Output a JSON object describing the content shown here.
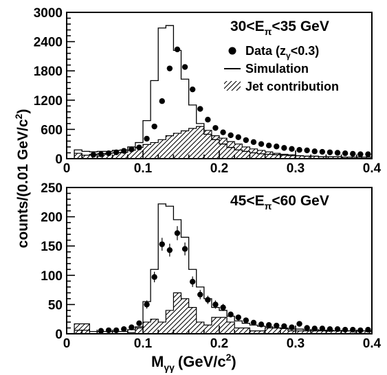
{
  "ylabel": "counts/(0.01 GeV/c",
  "ylabel_sup": "2",
  "ylabel_tail": ")",
  "xlabel": "M",
  "xlabel_sub": "γγ",
  "xlabel_unit": "(GeV/c",
  "xlabel_sup": "2",
  "xlabel_tail": ")",
  "legend": {
    "data": "Data (z",
    "data_sub": "γ",
    "data_tail": "<0.3)",
    "simulation": "Simulation",
    "jet": "Jet contribution"
  },
  "chart_data": [
    {
      "type": "line",
      "panel": "top",
      "annotation": {
        "pre": "30<E",
        "sub": "π",
        "post": "<35 GeV"
      },
      "xlim": [
        0,
        0.4
      ],
      "ylim": [
        0,
        3000
      ],
      "xticks": [
        0,
        0.1,
        0.2,
        0.3,
        0.4
      ],
      "xtick_labels": [
        "0",
        "0.1",
        "0.2",
        "0.3",
        "0.4"
      ],
      "yticks": [
        0,
        600,
        1200,
        1800,
        2400,
        3000
      ],
      "ytick_labels": [
        "0",
        "600",
        "1200",
        "1800",
        "2400",
        "3000"
      ],
      "bin_edges": [
        0.01,
        0.02,
        0.03,
        0.04,
        0.05,
        0.06,
        0.07,
        0.08,
        0.09,
        0.1,
        0.11,
        0.12,
        0.13,
        0.14,
        0.15,
        0.16,
        0.17,
        0.18,
        0.19,
        0.2,
        0.21,
        0.22,
        0.23,
        0.24,
        0.25,
        0.26,
        0.27,
        0.28,
        0.29,
        0.3,
        0.31,
        0.32,
        0.33,
        0.34,
        0.35,
        0.36,
        0.37,
        0.38,
        0.39,
        0.4
      ],
      "series": [
        {
          "name": "Simulation",
          "style": "step",
          "values": [
            180,
            150,
            140,
            150,
            150,
            170,
            180,
            240,
            330,
            780,
            1600,
            2680,
            2730,
            2220,
            1630,
            1100,
            720,
            500,
            390,
            300,
            230,
            180,
            150,
            120,
            100,
            90,
            80,
            70,
            60,
            60,
            50,
            50,
            40,
            40,
            40,
            30,
            30,
            30,
            30
          ]
        },
        {
          "name": "Jet contribution",
          "style": "hatched-step",
          "values": [
            110,
            70,
            90,
            100,
            110,
            120,
            130,
            170,
            230,
            290,
            330,
            390,
            470,
            520,
            570,
            620,
            660,
            580,
            470,
            420,
            350,
            300,
            240,
            200,
            170,
            140,
            110,
            90,
            80,
            60,
            50,
            50,
            40,
            40,
            40,
            30,
            30,
            30,
            30
          ]
        },
        {
          "name": "Data (zγ<0.3)",
          "style": "points",
          "x": [
            0.035,
            0.045,
            0.055,
            0.065,
            0.075,
            0.085,
            0.095,
            0.105,
            0.115,
            0.125,
            0.135,
            0.145,
            0.155,
            0.165,
            0.175,
            0.185,
            0.195,
            0.205,
            0.215,
            0.225,
            0.235,
            0.245,
            0.255,
            0.265,
            0.275,
            0.285,
            0.295,
            0.305,
            0.315,
            0.325,
            0.335,
            0.345,
            0.355,
            0.365,
            0.375,
            0.385,
            0.395
          ],
          "values": [
            80,
            90,
            110,
            130,
            160,
            190,
            230,
            410,
            660,
            1180,
            1850,
            2240,
            1880,
            1420,
            1020,
            800,
            630,
            540,
            480,
            440,
            380,
            340,
            300,
            270,
            250,
            220,
            200,
            180,
            170,
            150,
            140,
            130,
            120,
            110,
            100,
            90,
            90
          ],
          "errors": []
        }
      ]
    },
    {
      "type": "line",
      "panel": "bottom",
      "annotation": {
        "pre": "45<E",
        "sub": "π",
        "post": "<60 GeV"
      },
      "xlim": [
        0,
        0.4
      ],
      "ylim": [
        0,
        250
      ],
      "xticks": [
        0,
        0.1,
        0.2,
        0.3,
        0.4
      ],
      "xtick_labels": [
        "0",
        "0.1",
        "0.2",
        "0.3",
        "0.4"
      ],
      "yticks": [
        0,
        50,
        100,
        150,
        200,
        250
      ],
      "ytick_labels": [
        "0",
        "50",
        "100",
        "150",
        "200",
        "250"
      ],
      "bin_edges": [
        0.01,
        0.02,
        0.03,
        0.04,
        0.05,
        0.06,
        0.07,
        0.08,
        0.09,
        0.1,
        0.11,
        0.12,
        0.13,
        0.14,
        0.15,
        0.16,
        0.17,
        0.18,
        0.19,
        0.2,
        0.21,
        0.22,
        0.23,
        0.24,
        0.25,
        0.26,
        0.27,
        0.28,
        0.29,
        0.3,
        0.31,
        0.32,
        0.33,
        0.34,
        0.35,
        0.36,
        0.37,
        0.38,
        0.39,
        0.4
      ],
      "series": [
        {
          "name": "Simulation",
          "style": "step",
          "values": [
            6,
            6,
            4,
            4,
            4,
            4,
            4,
            7,
            12,
            55,
            110,
            222,
            218,
            195,
            165,
            110,
            80,
            60,
            45,
            40,
            30,
            22,
            18,
            15,
            13,
            12,
            10,
            9,
            8,
            8,
            7,
            7,
            6,
            6,
            5,
            5,
            5,
            5,
            5
          ],
          "pre_bins": [
            1,
            1,
            1,
            1,
            1,
            1,
            1,
            1,
            1,
            1,
            1
          ]
        },
        {
          "name": "Jet contribution",
          "style": "hatched-step",
          "values": [
            17,
            17,
            0,
            0,
            0,
            0,
            0,
            2,
            10,
            20,
            25,
            20,
            40,
            70,
            60,
            45,
            20,
            15,
            28,
            28,
            20,
            10,
            10,
            5,
            5,
            10,
            10,
            10,
            5,
            5,
            5,
            5,
            5,
            5,
            5,
            5,
            5,
            5,
            5
          ]
        },
        {
          "name": "Data (zγ<0.3)",
          "style": "points",
          "x": [
            0.045,
            0.055,
            0.065,
            0.075,
            0.085,
            0.095,
            0.105,
            0.115,
            0.125,
            0.135,
            0.145,
            0.155,
            0.165,
            0.175,
            0.185,
            0.195,
            0.205,
            0.215,
            0.225,
            0.235,
            0.245,
            0.255,
            0.265,
            0.275,
            0.285,
            0.295,
            0.305,
            0.315,
            0.325,
            0.335,
            0.345,
            0.355,
            0.365,
            0.375,
            0.385,
            0.395
          ],
          "values": [
            5,
            6,
            6,
            8,
            11,
            18,
            50,
            97,
            153,
            143,
            172,
            145,
            89,
            67,
            58,
            50,
            45,
            33,
            28,
            23,
            19,
            16,
            15,
            14,
            13,
            11,
            17,
            10,
            9,
            9,
            8,
            8,
            7,
            7,
            6,
            7
          ],
          "errors": [
            2,
            2,
            2,
            3,
            3,
            4,
            7,
            9,
            11,
            11,
            12,
            11,
            9,
            8,
            7,
            7,
            6,
            5,
            5,
            4,
            4,
            4,
            3,
            3,
            3,
            3,
            4,
            3,
            3,
            3,
            3,
            3,
            2,
            2,
            2,
            2
          ]
        }
      ]
    }
  ]
}
